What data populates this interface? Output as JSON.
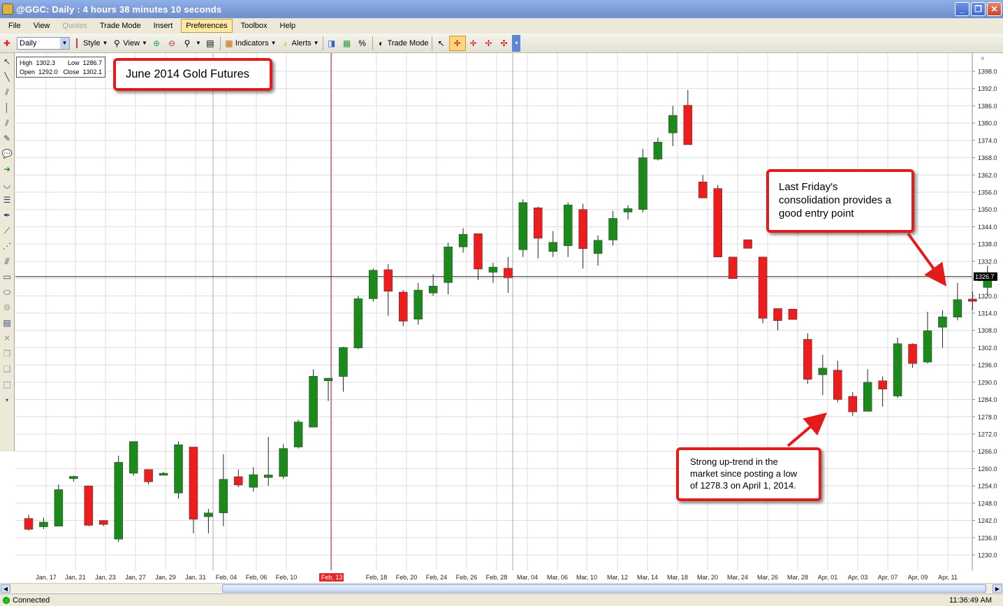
{
  "window": {
    "title": "@GGC: Daily : 4 hours 38 minutes 10 seconds",
    "minimize_glyph": "_",
    "maximize_glyph": "❐",
    "close_glyph": "✕"
  },
  "menu": [
    "File",
    "View",
    "Quotes",
    "Trade Mode",
    "Insert",
    "Preferences",
    "Toolbox",
    "Help"
  ],
  "toolbar": {
    "interval": "Daily",
    "style_label": "Style",
    "view_label": "View",
    "indicators_label": "Indicators",
    "alerts_label": "Alerts",
    "trade_mode_label": "Trade Mode"
  },
  "ohlc_box": {
    "high_label": "High",
    "high": "1302.3",
    "low_label": "Low",
    "low": "1286.7",
    "open_label": "Open",
    "open": "1292.0",
    "close_label": "Close",
    "close": "1302.1"
  },
  "callouts": {
    "title": "June 2014 Gold Futures",
    "friday": [
      "Last Friday's",
      "consolidation provides a",
      "good entry point"
    ],
    "uptrend": [
      "Strong up-trend in the",
      "market since posting a low",
      "of 1278.3 on April 1, 2014."
    ]
  },
  "status": {
    "connection": "Connected",
    "time": "11:36:49 AM"
  },
  "colors": {
    "up": "#1a8a1a",
    "down": "#ee1c1c",
    "callout_border": "#e41b1b",
    "grid": "#d8d8d8",
    "last_price_box": "#000000"
  },
  "chart_data": {
    "type": "candlestick",
    "symbol": "@GGC",
    "interval": "Daily",
    "last_price": "1326.7",
    "ylim": [
      1225,
      1402
    ],
    "y_ticks": [
      "1398.0",
      "1392.0",
      "1386.0",
      "1380.0",
      "1374.0",
      "1368.0",
      "1362.0",
      "1356.0",
      "1350.0",
      "1344.0",
      "1338.0",
      "1332.0",
      "1326.0",
      "1320.0",
      "1314.0",
      "1308.0",
      "1302.0",
      "1296.0",
      "1290.0",
      "1284.0",
      "1278.0",
      "1272.0",
      "1266.0",
      "1260.0",
      "1254.0",
      "1248.0",
      "1242.0",
      "1236.0",
      "1230.0"
    ],
    "x_ticks": [
      "Jan, 17",
      "Jan, 21",
      "Jan, 23",
      "Jan, 27",
      "Jan, 29",
      "Jan, 31",
      "Feb, 04",
      "Feb, 06",
      "Feb, 10",
      "Feb, 13",
      "Feb, 18",
      "Feb, 20",
      "Feb, 24",
      "Feb, 26",
      "Feb, 28",
      "Mar, 04",
      "Mar, 06",
      "Mar, 10",
      "Mar, 12",
      "Mar, 14",
      "Mar, 18",
      "Mar, 20",
      "Mar, 24",
      "Mar, 26",
      "Mar, 28",
      "Apr, 01",
      "Apr, 03",
      "Apr, 07",
      "Apr, 09",
      "Apr, 11"
    ],
    "highlighted_x_tick": "Feb, 13",
    "candles": [
      {
        "o": 1242.7,
        "h": 1244.0,
        "l": 1238.5,
        "c": 1238.9
      },
      {
        "o": 1239.8,
        "h": 1243.0,
        "l": 1239.0,
        "c": 1241.4
      },
      {
        "o": 1240.0,
        "h": 1254.5,
        "l": 1240.0,
        "c": 1252.7
      },
      {
        "o": 1256.5,
        "h": 1257.5,
        "l": 1255.5,
        "c": 1257.3
      },
      {
        "o": 1254.0,
        "h": 1254.0,
        "l": 1240.0,
        "c": 1240.3
      },
      {
        "o": 1242.0,
        "h": 1242.0,
        "l": 1240.0,
        "c": 1240.6
      },
      {
        "o": 1235.5,
        "h": 1264.5,
        "l": 1234.5,
        "c": 1262.2
      },
      {
        "o": 1258.4,
        "h": 1269.5,
        "l": 1257.5,
        "c": 1269.4
      },
      {
        "o": 1259.7,
        "h": 1259.7,
        "l": 1254.5,
        "c": 1255.4
      },
      {
        "o": 1258.2,
        "h": 1258.8,
        "l": 1257.8,
        "c": 1258.4
      },
      {
        "o": 1251.5,
        "h": 1269.5,
        "l": 1249.5,
        "c": 1268.3
      },
      {
        "o": 1267.5,
        "h": 1267.5,
        "l": 1237.5,
        "c": 1242.4
      },
      {
        "o": 1243.3,
        "h": 1246.0,
        "l": 1237.5,
        "c": 1244.6
      },
      {
        "o": 1244.6,
        "h": 1265.0,
        "l": 1240.0,
        "c": 1256.3
      },
      {
        "o": 1257.2,
        "h": 1259.7,
        "l": 1253.5,
        "c": 1254.3
      },
      {
        "o": 1253.5,
        "h": 1260.5,
        "l": 1252.0,
        "c": 1257.9
      },
      {
        "o": 1256.9,
        "h": 1271.0,
        "l": 1254.0,
        "c": 1257.8
      },
      {
        "o": 1257.3,
        "h": 1268.5,
        "l": 1256.5,
        "c": 1267.0
      },
      {
        "o": 1267.5,
        "h": 1277.0,
        "l": 1267.0,
        "c": 1276.2
      },
      {
        "o": 1274.4,
        "h": 1294.5,
        "l": 1274.4,
        "c": 1292.1
      },
      {
        "o": 1290.5,
        "h": 1291.5,
        "l": 1283.5,
        "c": 1291.4
      },
      {
        "o": 1292.0,
        "h": 1302.3,
        "l": 1286.7,
        "c": 1302.1
      },
      {
        "o": 1301.9,
        "h": 1320.0,
        "l": 1301.5,
        "c": 1319.0
      },
      {
        "o": 1319.0,
        "h": 1329.5,
        "l": 1318.0,
        "c": 1328.9
      },
      {
        "o": 1329.1,
        "h": 1331.0,
        "l": 1313.0,
        "c": 1321.6
      },
      {
        "o": 1321.3,
        "h": 1322.0,
        "l": 1309.5,
        "c": 1311.2
      },
      {
        "o": 1311.9,
        "h": 1324.5,
        "l": 1310.0,
        "c": 1322.0
      },
      {
        "o": 1321.0,
        "h": 1327.5,
        "l": 1320.0,
        "c": 1323.4
      },
      {
        "o": 1324.6,
        "h": 1338.5,
        "l": 1320.5,
        "c": 1337.0
      },
      {
        "o": 1337.0,
        "h": 1343.5,
        "l": 1335.0,
        "c": 1341.4
      },
      {
        "o": 1341.6,
        "h": 1341.6,
        "l": 1325.5,
        "c": 1329.3
      },
      {
        "o": 1328.2,
        "h": 1331.5,
        "l": 1324.5,
        "c": 1330.0
      },
      {
        "o": 1329.6,
        "h": 1333.5,
        "l": 1321.0,
        "c": 1326.3
      },
      {
        "o": 1336.0,
        "h": 1353.5,
        "l": 1333.5,
        "c": 1352.4
      },
      {
        "o": 1350.6,
        "h": 1351.0,
        "l": 1333.0,
        "c": 1340.0
      },
      {
        "o": 1335.4,
        "h": 1342.5,
        "l": 1333.5,
        "c": 1338.6
      },
      {
        "o": 1337.4,
        "h": 1352.5,
        "l": 1333.5,
        "c": 1351.6
      },
      {
        "o": 1350.0,
        "h": 1352.0,
        "l": 1329.5,
        "c": 1336.4
      },
      {
        "o": 1334.7,
        "h": 1341.0,
        "l": 1330.5,
        "c": 1339.3
      },
      {
        "o": 1339.4,
        "h": 1349.5,
        "l": 1337.5,
        "c": 1346.9
      },
      {
        "o": 1349.1,
        "h": 1351.5,
        "l": 1346.5,
        "c": 1350.3
      },
      {
        "o": 1350.0,
        "h": 1371.0,
        "l": 1349.0,
        "c": 1368.0
      },
      {
        "o": 1367.5,
        "h": 1375.0,
        "l": 1367.0,
        "c": 1373.4
      },
      {
        "o": 1376.6,
        "h": 1386.0,
        "l": 1372.0,
        "c": 1382.7
      },
      {
        "o": 1386.2,
        "h": 1391.5,
        "l": 1372.5,
        "c": 1372.5
      },
      {
        "o": 1359.6,
        "h": 1362.0,
        "l": 1354.0,
        "c": 1354.0
      },
      {
        "o": 1357.3,
        "h": 1358.5,
        "l": 1333.5,
        "c": 1333.5
      },
      {
        "o": 1333.5,
        "h": 1333.5,
        "l": 1326.0,
        "c": 1326.0
      },
      {
        "o": 1339.5,
        "h": 1339.5,
        "l": 1336.5,
        "c": 1336.5
      },
      {
        "o": 1333.5,
        "h": 1333.5,
        "l": 1310.5,
        "c": 1312.2
      },
      {
        "o": 1315.6,
        "h": 1315.6,
        "l": 1308.0,
        "c": 1311.4
      },
      {
        "o": 1315.4,
        "h": 1315.4,
        "l": 1311.8,
        "c": 1311.8
      },
      {
        "o": 1304.9,
        "h": 1307.0,
        "l": 1289.5,
        "c": 1291.0
      },
      {
        "o": 1292.6,
        "h": 1299.5,
        "l": 1285.5,
        "c": 1294.9
      },
      {
        "o": 1294.2,
        "h": 1297.5,
        "l": 1283.0,
        "c": 1284.0
      },
      {
        "o": 1285.1,
        "h": 1286.6,
        "l": 1278.3,
        "c": 1279.7
      },
      {
        "o": 1279.9,
        "h": 1294.5,
        "l": 1279.8,
        "c": 1290.0
      },
      {
        "o": 1290.5,
        "h": 1292.0,
        "l": 1281.5,
        "c": 1287.6
      },
      {
        "o": 1285.2,
        "h": 1305.5,
        "l": 1284.5,
        "c": 1303.4
      },
      {
        "o": 1303.2,
        "h": 1303.5,
        "l": 1295.0,
        "c": 1296.5
      },
      {
        "o": 1297.0,
        "h": 1314.5,
        "l": 1296.5,
        "c": 1307.9
      },
      {
        "o": 1309.1,
        "h": 1315.0,
        "l": 1302.0,
        "c": 1312.7
      },
      {
        "o": 1312.6,
        "h": 1324.5,
        "l": 1311.5,
        "c": 1318.7
      },
      {
        "o": 1318.9,
        "h": 1321.5,
        "l": 1315.0,
        "c": 1318.1
      },
      {
        "o": 1322.9,
        "h": 1330.5,
        "l": 1320.0,
        "c": 1326.7
      }
    ]
  }
}
